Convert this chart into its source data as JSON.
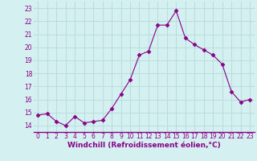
{
  "x": [
    0,
    1,
    2,
    3,
    4,
    5,
    6,
    7,
    8,
    9,
    10,
    11,
    12,
    13,
    14,
    15,
    16,
    17,
    18,
    19,
    20,
    21,
    22,
    23
  ],
  "y": [
    14.8,
    14.9,
    14.3,
    14.0,
    14.7,
    14.2,
    14.3,
    14.4,
    15.3,
    16.4,
    17.5,
    19.4,
    19.7,
    21.7,
    21.7,
    22.8,
    20.7,
    20.2,
    19.8,
    19.4,
    18.7,
    16.6,
    15.8,
    16.0
  ],
  "line_color": "#880088",
  "marker": "D",
  "marker_size": 2.5,
  "bg_color": "#d5f0f0",
  "grid_color": "#b8dede",
  "xlabel": "Windchill (Refroidissement éolien,°C)",
  "xlabel_fontsize": 6.5,
  "ylim": [
    13.5,
    23.5
  ],
  "xlim": [
    -0.5,
    23.5
  ],
  "yticks": [
    14,
    15,
    16,
    17,
    18,
    19,
    20,
    21,
    22,
    23
  ],
  "xticks": [
    0,
    1,
    2,
    3,
    4,
    5,
    6,
    7,
    8,
    9,
    10,
    11,
    12,
    13,
    14,
    15,
    16,
    17,
    18,
    19,
    20,
    21,
    22,
    23
  ],
  "tick_fontsize": 5.5,
  "tick_color": "#880088",
  "label_color": "#880088",
  "spine_color": "#880088"
}
